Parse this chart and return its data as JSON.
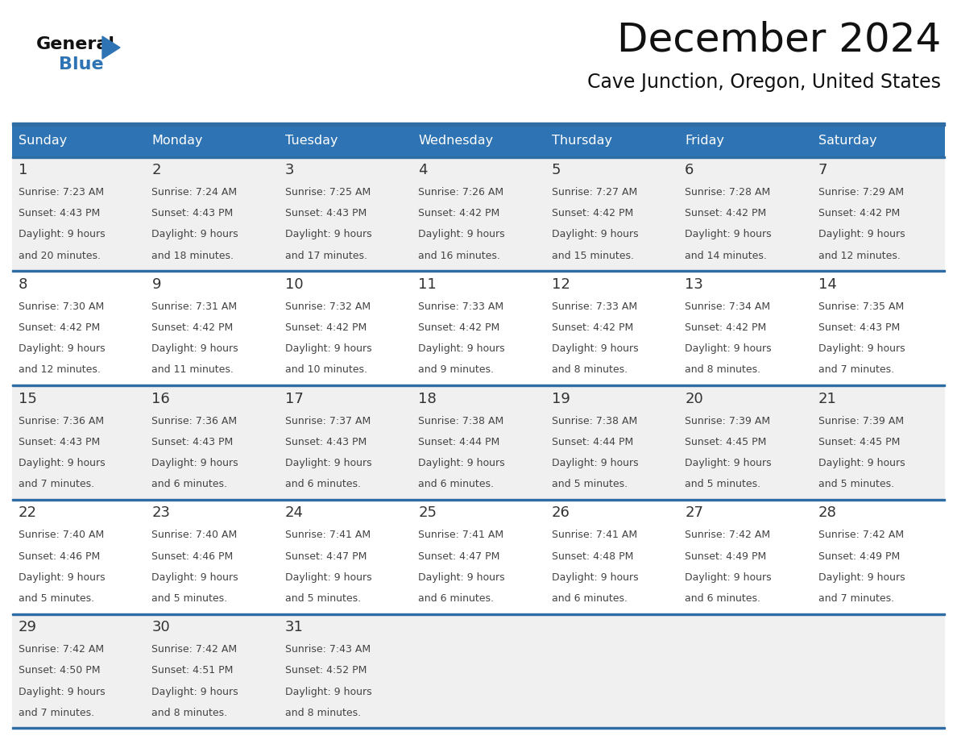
{
  "title": "December 2024",
  "subtitle": "Cave Junction, Oregon, United States",
  "days_of_week": [
    "Sunday",
    "Monday",
    "Tuesday",
    "Wednesday",
    "Thursday",
    "Friday",
    "Saturday"
  ],
  "header_color": "#2e74b5",
  "header_text_color": "#ffffff",
  "bg_color": "#ffffff",
  "row_alt_color": "#f0f0f0",
  "row_color": "#ffffff",
  "border_color": "#2e6da4",
  "title_color": "#111111",
  "subtitle_color": "#111111",
  "day_num_color": "#333333",
  "cell_text_color": "#444444",
  "logo_general_color": "#111111",
  "logo_blue_color": "#2e74b5",
  "weeks": [
    {
      "days": [
        {
          "date": 1,
          "sunrise": "7:23 AM",
          "sunset": "4:43 PM",
          "daylight_line1": "9 hours",
          "daylight_line2": "and 20 minutes."
        },
        {
          "date": 2,
          "sunrise": "7:24 AM",
          "sunset": "4:43 PM",
          "daylight_line1": "9 hours",
          "daylight_line2": "and 18 minutes."
        },
        {
          "date": 3,
          "sunrise": "7:25 AM",
          "sunset": "4:43 PM",
          "daylight_line1": "9 hours",
          "daylight_line2": "and 17 minutes."
        },
        {
          "date": 4,
          "sunrise": "7:26 AM",
          "sunset": "4:42 PM",
          "daylight_line1": "9 hours",
          "daylight_line2": "and 16 minutes."
        },
        {
          "date": 5,
          "sunrise": "7:27 AM",
          "sunset": "4:42 PM",
          "daylight_line1": "9 hours",
          "daylight_line2": "and 15 minutes."
        },
        {
          "date": 6,
          "sunrise": "7:28 AM",
          "sunset": "4:42 PM",
          "daylight_line1": "9 hours",
          "daylight_line2": "and 14 minutes."
        },
        {
          "date": 7,
          "sunrise": "7:29 AM",
          "sunset": "4:42 PM",
          "daylight_line1": "9 hours",
          "daylight_line2": "and 12 minutes."
        }
      ]
    },
    {
      "days": [
        {
          "date": 8,
          "sunrise": "7:30 AM",
          "sunset": "4:42 PM",
          "daylight_line1": "9 hours",
          "daylight_line2": "and 12 minutes."
        },
        {
          "date": 9,
          "sunrise": "7:31 AM",
          "sunset": "4:42 PM",
          "daylight_line1": "9 hours",
          "daylight_line2": "and 11 minutes."
        },
        {
          "date": 10,
          "sunrise": "7:32 AM",
          "sunset": "4:42 PM",
          "daylight_line1": "9 hours",
          "daylight_line2": "and 10 minutes."
        },
        {
          "date": 11,
          "sunrise": "7:33 AM",
          "sunset": "4:42 PM",
          "daylight_line1": "9 hours",
          "daylight_line2": "and 9 minutes."
        },
        {
          "date": 12,
          "sunrise": "7:33 AM",
          "sunset": "4:42 PM",
          "daylight_line1": "9 hours",
          "daylight_line2": "and 8 minutes."
        },
        {
          "date": 13,
          "sunrise": "7:34 AM",
          "sunset": "4:42 PM",
          "daylight_line1": "9 hours",
          "daylight_line2": "and 8 minutes."
        },
        {
          "date": 14,
          "sunrise": "7:35 AM",
          "sunset": "4:43 PM",
          "daylight_line1": "9 hours",
          "daylight_line2": "and 7 minutes."
        }
      ]
    },
    {
      "days": [
        {
          "date": 15,
          "sunrise": "7:36 AM",
          "sunset": "4:43 PM",
          "daylight_line1": "9 hours",
          "daylight_line2": "and 7 minutes."
        },
        {
          "date": 16,
          "sunrise": "7:36 AM",
          "sunset": "4:43 PM",
          "daylight_line1": "9 hours",
          "daylight_line2": "and 6 minutes."
        },
        {
          "date": 17,
          "sunrise": "7:37 AM",
          "sunset": "4:43 PM",
          "daylight_line1": "9 hours",
          "daylight_line2": "and 6 minutes."
        },
        {
          "date": 18,
          "sunrise": "7:38 AM",
          "sunset": "4:44 PM",
          "daylight_line1": "9 hours",
          "daylight_line2": "and 6 minutes."
        },
        {
          "date": 19,
          "sunrise": "7:38 AM",
          "sunset": "4:44 PM",
          "daylight_line1": "9 hours",
          "daylight_line2": "and 5 minutes."
        },
        {
          "date": 20,
          "sunrise": "7:39 AM",
          "sunset": "4:45 PM",
          "daylight_line1": "9 hours",
          "daylight_line2": "and 5 minutes."
        },
        {
          "date": 21,
          "sunrise": "7:39 AM",
          "sunset": "4:45 PM",
          "daylight_line1": "9 hours",
          "daylight_line2": "and 5 minutes."
        }
      ]
    },
    {
      "days": [
        {
          "date": 22,
          "sunrise": "7:40 AM",
          "sunset": "4:46 PM",
          "daylight_line1": "9 hours",
          "daylight_line2": "and 5 minutes."
        },
        {
          "date": 23,
          "sunrise": "7:40 AM",
          "sunset": "4:46 PM",
          "daylight_line1": "9 hours",
          "daylight_line2": "and 5 minutes."
        },
        {
          "date": 24,
          "sunrise": "7:41 AM",
          "sunset": "4:47 PM",
          "daylight_line1": "9 hours",
          "daylight_line2": "and 5 minutes."
        },
        {
          "date": 25,
          "sunrise": "7:41 AM",
          "sunset": "4:47 PM",
          "daylight_line1": "9 hours",
          "daylight_line2": "and 6 minutes."
        },
        {
          "date": 26,
          "sunrise": "7:41 AM",
          "sunset": "4:48 PM",
          "daylight_line1": "9 hours",
          "daylight_line2": "and 6 minutes."
        },
        {
          "date": 27,
          "sunrise": "7:42 AM",
          "sunset": "4:49 PM",
          "daylight_line1": "9 hours",
          "daylight_line2": "and 6 minutes."
        },
        {
          "date": 28,
          "sunrise": "7:42 AM",
          "sunset": "4:49 PM",
          "daylight_line1": "9 hours",
          "daylight_line2": "and 7 minutes."
        }
      ]
    },
    {
      "days": [
        {
          "date": 29,
          "sunrise": "7:42 AM",
          "sunset": "4:50 PM",
          "daylight_line1": "9 hours",
          "daylight_line2": "and 7 minutes."
        },
        {
          "date": 30,
          "sunrise": "7:42 AM",
          "sunset": "4:51 PM",
          "daylight_line1": "9 hours",
          "daylight_line2": "and 8 minutes."
        },
        {
          "date": 31,
          "sunrise": "7:43 AM",
          "sunset": "4:52 PM",
          "daylight_line1": "9 hours",
          "daylight_line2": "and 8 minutes."
        },
        null,
        null,
        null,
        null
      ]
    }
  ]
}
